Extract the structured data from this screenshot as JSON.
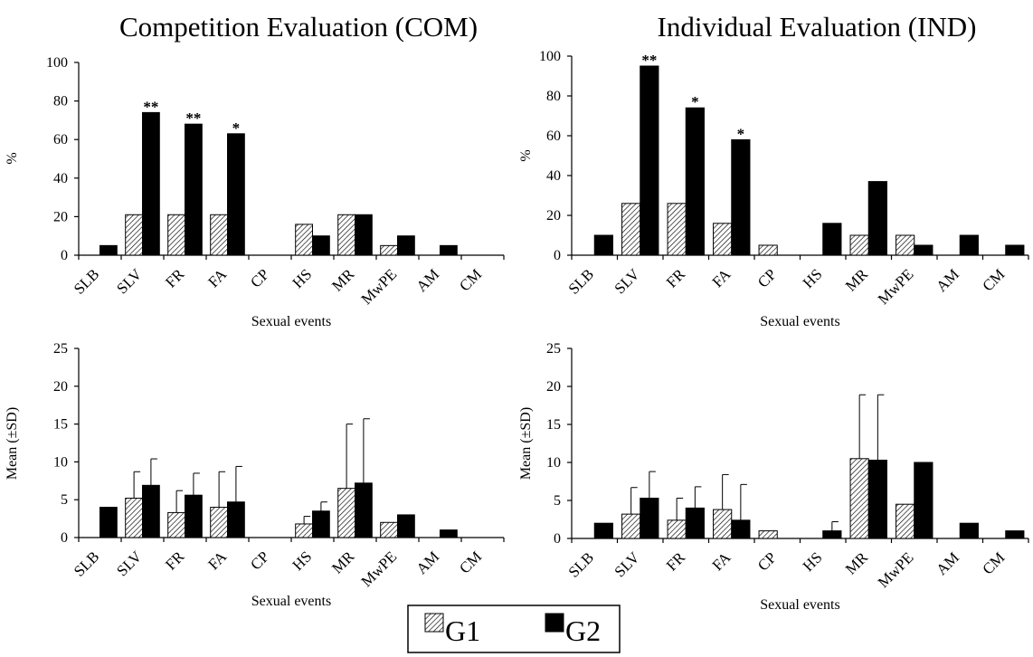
{
  "chart_data": [
    {
      "type": "bar",
      "title": "Competition Evaluation (COM)",
      "xlabel": "Sexual events",
      "ylabel": "%",
      "ylim": [
        0,
        100
      ],
      "yticks": [
        0,
        20,
        40,
        60,
        80,
        100
      ],
      "categories": [
        "SLB",
        "SLV",
        "FR",
        "FA",
        "CP",
        "HS",
        "MR",
        "MwPE",
        "AM",
        "CM"
      ],
      "series": [
        {
          "name": "G1",
          "values": [
            0,
            21,
            21,
            21,
            0,
            16,
            21,
            5,
            0,
            0
          ]
        },
        {
          "name": "G2",
          "values": [
            5,
            74,
            68,
            63,
            0,
            10,
            21,
            10,
            5,
            0
          ]
        }
      ],
      "annotations": [
        {
          "category": "SLV",
          "series": "G2",
          "text": "**"
        },
        {
          "category": "FR",
          "series": "G2",
          "text": "**"
        },
        {
          "category": "FA",
          "series": "G2",
          "text": "*"
        }
      ]
    },
    {
      "type": "bar",
      "title": "Individual Evaluation (IND)",
      "xlabel": "Sexual events",
      "ylabel": "%",
      "ylim": [
        0,
        100
      ],
      "yticks": [
        0,
        20,
        40,
        60,
        80,
        100
      ],
      "categories": [
        "SLB",
        "SLV",
        "FR",
        "FA",
        "CP",
        "HS",
        "MR",
        "MwPE",
        "AM",
        "CM"
      ],
      "series": [
        {
          "name": "G1",
          "values": [
            0,
            26,
            26,
            16,
            5,
            0,
            10,
            10,
            0,
            0
          ]
        },
        {
          "name": "G2",
          "values": [
            10,
            95,
            74,
            58,
            0,
            16,
            37,
            5,
            10,
            5
          ]
        }
      ],
      "annotations": [
        {
          "category": "SLV",
          "series": "G2",
          "text": "**"
        },
        {
          "category": "FR",
          "series": "G2",
          "text": "*"
        },
        {
          "category": "FA",
          "series": "G2",
          "text": "*"
        }
      ]
    },
    {
      "type": "bar",
      "title": "",
      "xlabel": "Sexual events",
      "ylabel": "Mean (±SD)",
      "ylim": [
        0,
        25
      ],
      "yticks": [
        0,
        5,
        10,
        15,
        20,
        25
      ],
      "categories": [
        "SLB",
        "SLV",
        "FR",
        "FA",
        "CP",
        "HS",
        "MR",
        "MwPE",
        "AM",
        "CM"
      ],
      "series": [
        {
          "name": "G1",
          "values": [
            0,
            5.2,
            3.3,
            4.0,
            0,
            1.8,
            6.5,
            2.0,
            0,
            0
          ],
          "sd": [
            0,
            3.5,
            2.9,
            4.7,
            0,
            1.0,
            8.5,
            0,
            0,
            0
          ]
        },
        {
          "name": "G2",
          "values": [
            4.0,
            6.9,
            5.6,
            4.7,
            0,
            3.5,
            7.2,
            3.0,
            1.0,
            0
          ],
          "sd": [
            0,
            3.5,
            2.9,
            4.7,
            0,
            1.2,
            8.5,
            0,
            0,
            0
          ]
        }
      ]
    },
    {
      "type": "bar",
      "title": "",
      "xlabel": "Sexual events",
      "ylabel": "Mean (±SD)",
      "ylim": [
        0,
        25
      ],
      "yticks": [
        0,
        5,
        10,
        15,
        20,
        25
      ],
      "categories": [
        "SLB",
        "SLV",
        "FR",
        "FA",
        "CP",
        "HS",
        "MR",
        "MwPE",
        "AM",
        "CM"
      ],
      "series": [
        {
          "name": "G1",
          "values": [
            0,
            3.2,
            2.4,
            3.8,
            1.0,
            0,
            10.5,
            4.5,
            0,
            0
          ],
          "sd": [
            0,
            3.5,
            2.9,
            4.6,
            0,
            0,
            8.4,
            0,
            0,
            0
          ]
        },
        {
          "name": "G2",
          "values": [
            2.0,
            5.3,
            4.0,
            2.4,
            0,
            1.0,
            10.3,
            10.0,
            2.0,
            1.0
          ],
          "sd": [
            0,
            3.5,
            2.8,
            4.7,
            0,
            1.2,
            8.6,
            0,
            0,
            0
          ]
        }
      ]
    }
  ],
  "legend": {
    "items": [
      {
        "label": "G1",
        "style": "hatched"
      },
      {
        "label": "G2",
        "style": "solid",
        "color": "#000000"
      }
    ]
  }
}
